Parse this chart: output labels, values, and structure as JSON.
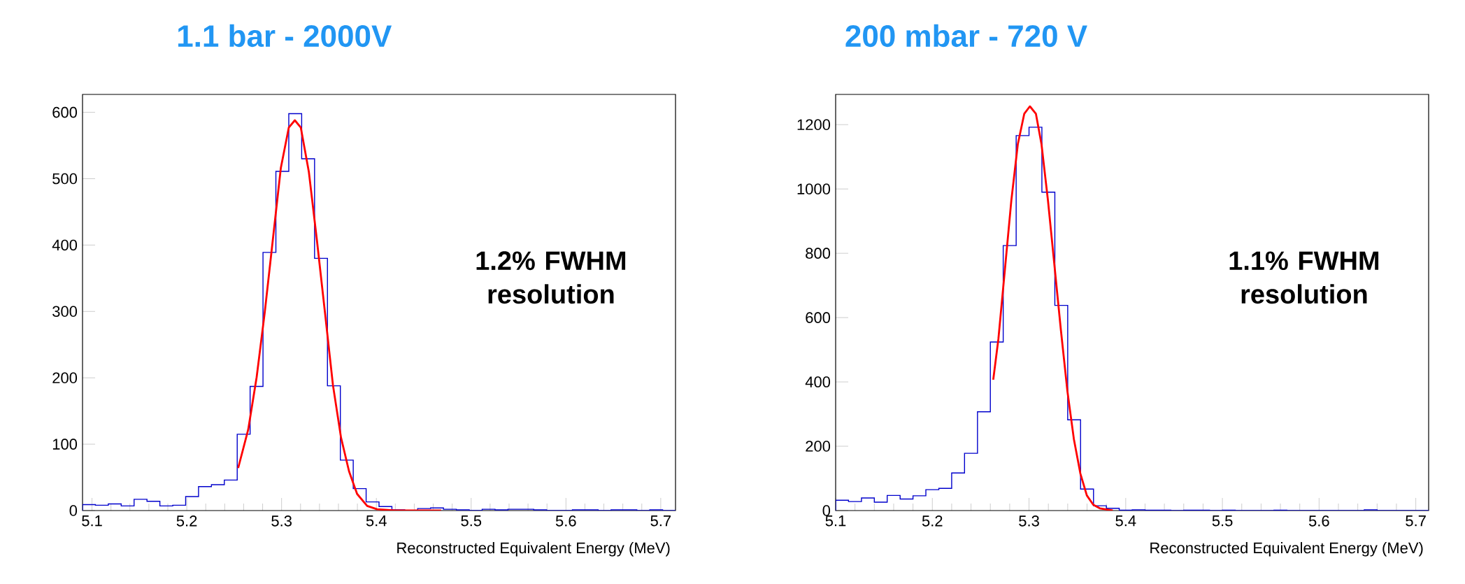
{
  "chart_data": [
    {
      "type": "histogram",
      "title": "1.1 bar - 2000V",
      "xlabel": "Reconstructed Equivalent Energy (MeV)",
      "color": "#0000cc",
      "bins": [
        5.09,
        5.1036,
        5.1172,
        5.1308,
        5.1444,
        5.158,
        5.1716,
        5.1852,
        5.1988,
        5.2124,
        5.226,
        5.2396,
        5.2532,
        5.2668,
        5.2804,
        5.294,
        5.3076,
        5.3212,
        5.3348,
        5.3484,
        5.362,
        5.3756,
        5.3892,
        5.4028,
        5.4164,
        5.43,
        5.4436,
        5.4572,
        5.4708,
        5.4844,
        5.498,
        5.5116,
        5.5252,
        5.5388,
        5.5524,
        5.566,
        5.5796,
        5.5932,
        5.6068,
        5.6204,
        5.634,
        5.6476,
        5.6612,
        5.6748,
        5.6884,
        5.702,
        5.7156
      ],
      "values": [
        9,
        8,
        10,
        7,
        17,
        14,
        7,
        8,
        21,
        36,
        39,
        46,
        115,
        187,
        389,
        511,
        598,
        530,
        380,
        188,
        76,
        33,
        13,
        6,
        1,
        0,
        3,
        4,
        2,
        1,
        0,
        2,
        1,
        2,
        2,
        1,
        0,
        0,
        1,
        1,
        0,
        1,
        1,
        0,
        1,
        0
      ],
      "series": [
        {
          "type": "line",
          "color": "#ff0000",
          "x": [
            5.2542,
            5.2648,
            5.2737,
            5.2822,
            5.2907,
            5.2992,
            5.3076,
            5.314,
            5.3203,
            5.3288,
            5.3373,
            5.3458,
            5.3542,
            5.3627,
            5.3712,
            5.3797,
            5.3903,
            5.4008,
            5.42,
            5.4684
          ],
          "values": [
            64,
            122,
            201,
            298,
            407,
            516,
            577,
            588,
            577,
            510,
            407,
            298,
            189,
            110,
            59,
            25,
            7,
            2,
            0,
            0
          ]
        }
      ],
      "xlim": [
        5.09,
        5.7156
      ],
      "ylim": [
        0,
        627
      ],
      "xticks": [
        5.1,
        5.2,
        5.3,
        5.4,
        5.5,
        5.6,
        5.7
      ],
      "yticks": [
        0,
        100,
        200,
        300,
        400,
        500,
        600
      ],
      "annotations": [
        "1.2% FWHM resolution"
      ]
    },
    {
      "type": "histogram",
      "title": "200 mbar - 720 V",
      "xlabel": "Reconstructed Equivalent Energy (MeV)",
      "color": "#0000cc",
      "bins": [
        5.1,
        5.1133,
        5.1267,
        5.14,
        5.1533,
        5.1667,
        5.18,
        5.1933,
        5.2067,
        5.22,
        5.2333,
        5.2467,
        5.26,
        5.2733,
        5.2867,
        5.3,
        5.3133,
        5.3267,
        5.34,
        5.3533,
        5.3667,
        5.38,
        5.3933,
        5.4067,
        5.42,
        5.4333,
        5.4467,
        5.46,
        5.4733,
        5.4867,
        5.5,
        5.5133,
        5.5267,
        5.54,
        5.5533,
        5.5667,
        5.58,
        5.5933,
        5.6067,
        5.62,
        5.6333,
        5.6467,
        5.66,
        5.6733,
        5.6867,
        5.7,
        5.7133
      ],
      "values": [
        32,
        28,
        39,
        26,
        47,
        36,
        46,
        65,
        69,
        117,
        178,
        307,
        524,
        824,
        1166,
        1192,
        990,
        638,
        282,
        67,
        15,
        7,
        1,
        2,
        1,
        1,
        0,
        1,
        1,
        0,
        1,
        0,
        0,
        0,
        1,
        0,
        0,
        0,
        0,
        0,
        0,
        2,
        0,
        0,
        0,
        0
      ],
      "series": [
        {
          "type": "line",
          "color": "#ff0000",
          "x": [
            5.263,
            5.2683,
            5.275,
            5.2817,
            5.2884,
            5.2951,
            5.3009,
            5.3071,
            5.3129,
            5.3196,
            5.3263,
            5.333,
            5.3397,
            5.3464,
            5.3531,
            5.3598,
            5.3665,
            5.3732,
            5.3866
          ],
          "values": [
            407,
            533,
            748,
            964,
            1139,
            1234,
            1257,
            1234,
            1139,
            964,
            762,
            560,
            371,
            222,
            115,
            47,
            18,
            7,
            0
          ]
        }
      ],
      "xlim": [
        5.1,
        5.7133
      ],
      "ylim": [
        0,
        1294
      ],
      "xticks": [
        5.1,
        5.2,
        5.3,
        5.4,
        5.5,
        5.6,
        5.7
      ],
      "yticks": [
        0,
        200,
        400,
        600,
        800,
        1000,
        1200
      ],
      "annotations": [
        "1.1% FWHM resolution"
      ]
    }
  ]
}
